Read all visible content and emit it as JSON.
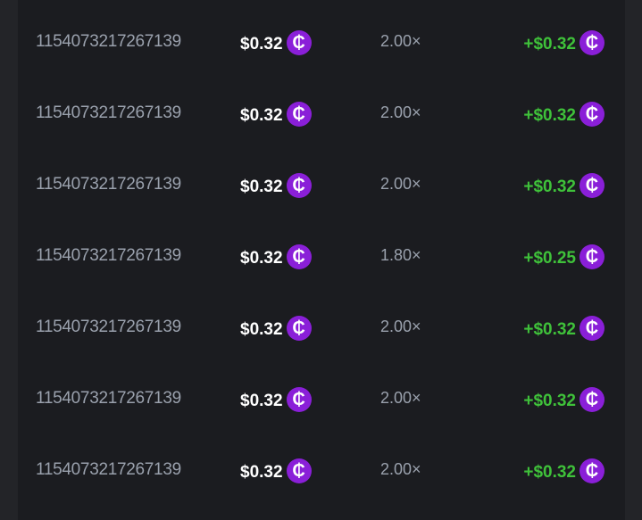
{
  "rows": [
    {
      "id": "1154073217267139",
      "bet": "$0.32",
      "multiplier": "2.00×",
      "payout": "+$0.32"
    },
    {
      "id": "1154073217267139",
      "bet": "$0.32",
      "multiplier": "2.00×",
      "payout": "+$0.32"
    },
    {
      "id": "1154073217267139",
      "bet": "$0.32",
      "multiplier": "2.00×",
      "payout": "+$0.32"
    },
    {
      "id": "1154073217267139",
      "bet": "$0.32",
      "multiplier": "1.80×",
      "payout": "+$0.25"
    },
    {
      "id": "1154073217267139",
      "bet": "$0.32",
      "multiplier": "2.00×",
      "payout": "+$0.32"
    },
    {
      "id": "1154073217267139",
      "bet": "$0.32",
      "multiplier": "2.00×",
      "payout": "+$0.32"
    },
    {
      "id": "1154073217267139",
      "bet": "$0.32",
      "multiplier": "2.00×",
      "payout": "+$0.32"
    }
  ],
  "coin_symbol": "₵",
  "colors": {
    "coin": "#8a1fd8",
    "win": "#3fc13a",
    "panel": "#1b1c20"
  }
}
